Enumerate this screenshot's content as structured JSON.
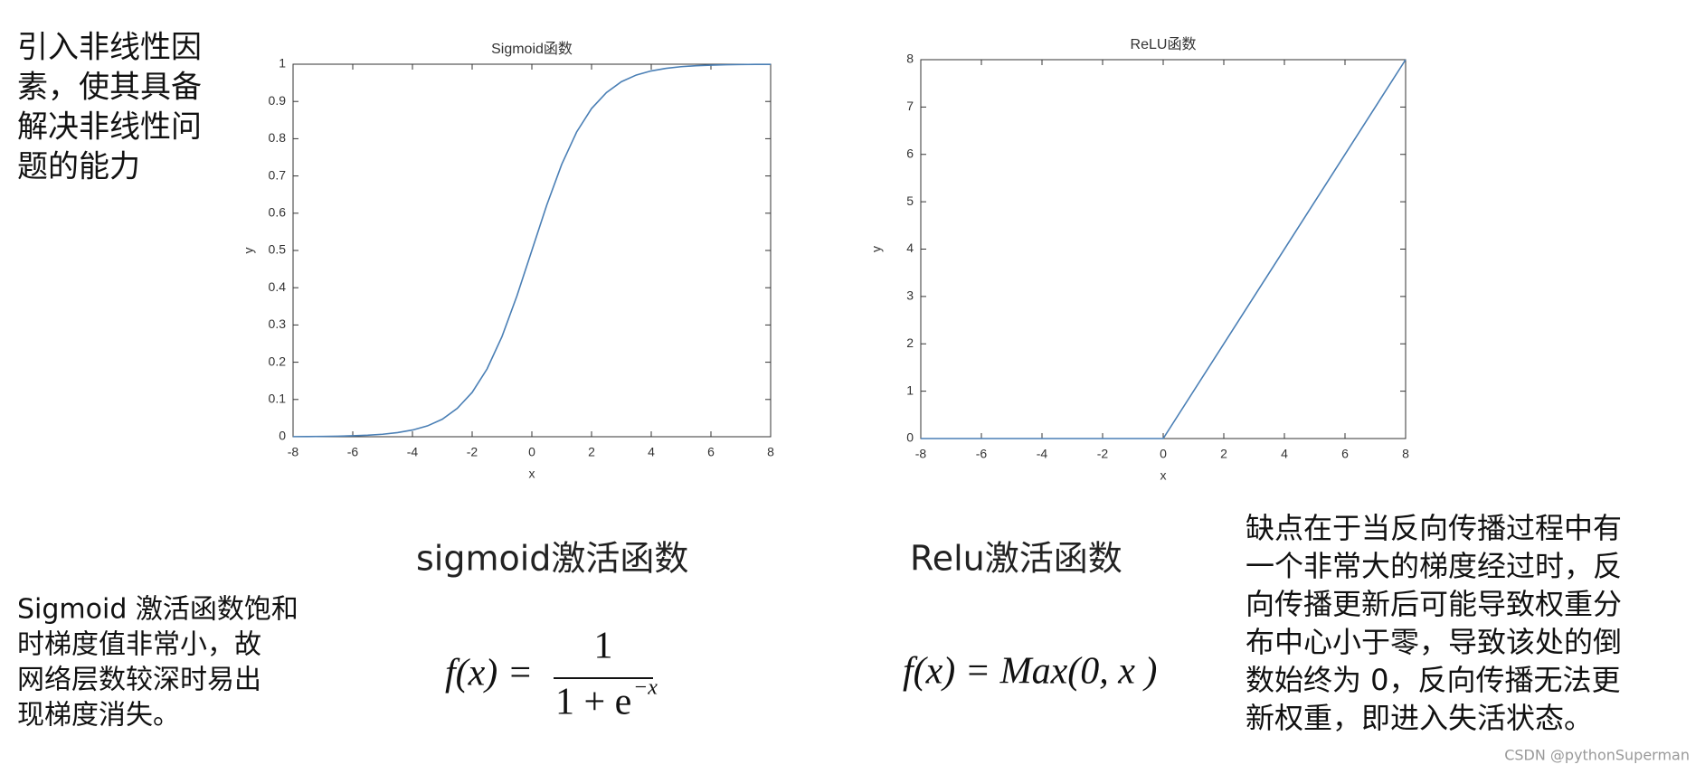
{
  "chart_data": [
    {
      "type": "line",
      "title": "Sigmoid函数",
      "x_label": "x",
      "y_label": "y",
      "x": [
        -8,
        -7.5,
        -7,
        -6.5,
        -6,
        -5.5,
        -5,
        -4.5,
        -4,
        -3.5,
        -3,
        -2.5,
        -2,
        -1.5,
        -1,
        -0.5,
        0,
        0.5,
        1,
        1.5,
        2,
        2.5,
        3,
        3.5,
        4,
        4.5,
        5,
        5.5,
        6,
        6.5,
        7,
        7.5,
        8
      ],
      "series": [
        {
          "color": "#4a7fb5",
          "values": [
            0.0003,
            0.00055,
            0.0009,
            0.0015,
            0.0025,
            0.0041,
            0.0067,
            0.011,
            0.018,
            0.029,
            0.047,
            0.076,
            0.119,
            0.182,
            0.269,
            0.378,
            0.5,
            0.622,
            0.731,
            0.818,
            0.881,
            0.924,
            0.953,
            0.971,
            0.982,
            0.989,
            0.9933,
            0.9959,
            0.9975,
            0.9985,
            0.9991,
            0.99945,
            0.99966
          ]
        }
      ],
      "xlim": [
        -8,
        8
      ],
      "xticks": [
        -8,
        -6,
        -4,
        -2,
        0,
        2,
        4,
        6,
        8
      ],
      "ylim": [
        0,
        1
      ],
      "yticks": [
        0,
        0.1,
        0.2,
        0.3,
        0.4,
        0.5,
        0.6,
        0.7,
        0.8,
        0.9,
        1
      ]
    },
    {
      "type": "line",
      "title": "ReLU函数",
      "x_label": "x",
      "y_label": "y",
      "x": [
        -8,
        0,
        8
      ],
      "series": [
        {
          "color": "#4a7fb5",
          "values": [
            0,
            0,
            8
          ]
        }
      ],
      "xlim": [
        -8,
        8
      ],
      "xticks": [
        -8,
        -6,
        -4,
        -2,
        0,
        2,
        4,
        6,
        8
      ],
      "ylim": [
        0,
        8
      ],
      "yticks": [
        0,
        1,
        2,
        3,
        4,
        5,
        6,
        7,
        8
      ]
    }
  ],
  "intro": {
    "lines": [
      "引入非线性因",
      "素，使其具备",
      "解决非线性问",
      "题的能力"
    ]
  },
  "sigmoid": {
    "caption": "sigmoid激活函数",
    "formula": {
      "lhs": "f(x) =",
      "numerator": "1",
      "denominator": "1 + e",
      "exponent": "−x"
    },
    "note": {
      "lines": [
        "Sigmoid 激活函数饱和",
        "时梯度值非常小，故",
        "网络层数较深时易出",
        "现梯度消失。"
      ]
    }
  },
  "relu": {
    "caption": "Relu激活函数",
    "formula": "f(x) = Max(0, x )",
    "note": {
      "lines": [
        "缺点在于当反向传播过程中有",
        "一个非常大的梯度经过时，反",
        "向传播更新后可能导致权重分",
        "布中心小于零，导致该处的倒",
        "数始终为 0，反向传播无法更",
        "新权重，即进入失活状态。"
      ]
    }
  },
  "watermark": "CSDN @pythonSuperman"
}
